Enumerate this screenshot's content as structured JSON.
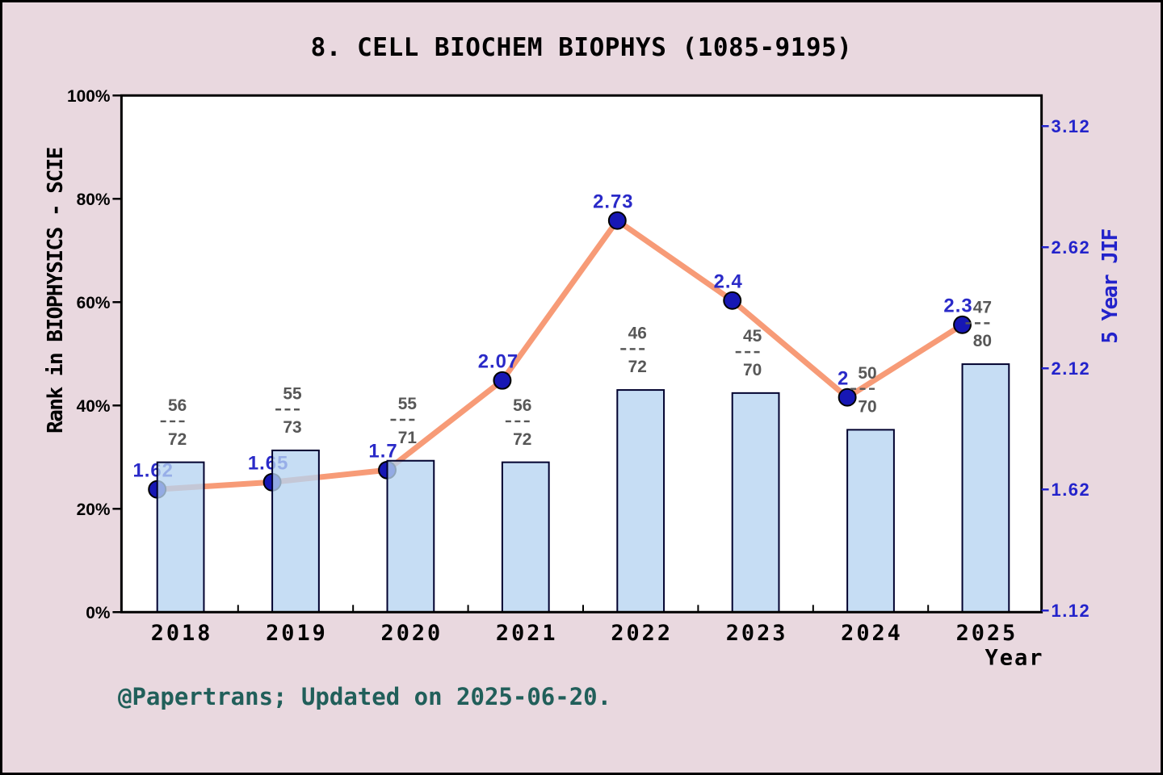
{
  "title": "8. CELL BIOCHEM BIOPHYS (1085-9195)",
  "attribution": "@Papertrans; Updated on 2025-06-20.",
  "colors": {
    "background": "#e9d8df",
    "plot_background": "#ffffff",
    "frame": "#000000",
    "bar_fill": "#b6d3f1",
    "bar_edge": "#00002e",
    "line": "#f79b77",
    "marker_fill": "#1717b4",
    "marker_edge": "#000000",
    "jif_label": "#2a2ac8",
    "right_axis": "#2323cb",
    "fraction_label": "#575757",
    "axis_text": "#000000",
    "attribution_text": "#215f5a"
  },
  "chart_data": {
    "type": "combo-bar-line",
    "categories": [
      "2018",
      "2019",
      "2020",
      "2021",
      "2022",
      "2023",
      "2024",
      "2025"
    ],
    "series": [
      {
        "name": "Rank in BIOPHYSICS - SCIE",
        "type": "bar",
        "axis": "left",
        "bar_heights_pct": [
          29,
          31.3,
          29.3,
          29,
          43,
          42.4,
          35.3,
          48
        ],
        "rank_labels": [
          {
            "num": "56",
            "den": "72"
          },
          {
            "num": "55",
            "den": "73"
          },
          {
            "num": "55",
            "den": "71"
          },
          {
            "num": "56",
            "den": "72"
          },
          {
            "num": "46",
            "den": "72"
          },
          {
            "num": "45",
            "den": "70"
          },
          {
            "num": "50",
            "den": "70"
          },
          {
            "num": "47",
            "den": "80"
          }
        ]
      },
      {
        "name": "5 Year JIF",
        "type": "line",
        "axis": "right",
        "values": [
          1.62,
          1.65,
          1.7,
          2.07,
          2.73,
          2.4,
          2.0,
          2.3
        ],
        "point_labels": [
          "1.62",
          "1.65",
          "1.7",
          "2.07",
          "2.73",
          "2.4",
          "2",
          "2.3"
        ]
      }
    ],
    "left_axis": {
      "title": "Rank in BIOPHYSICS - SCIE",
      "ticks": [
        "0%",
        "20%",
        "40%",
        "60%",
        "80%",
        "100%"
      ],
      "range": [
        0,
        100
      ]
    },
    "right_axis": {
      "title": "5 Year JIF",
      "ticks": [
        "1.12",
        "1.62",
        "2.12",
        "2.62",
        "3.12"
      ],
      "range": [
        1.12,
        3.25
      ]
    },
    "x_axis": {
      "title": "Year"
    },
    "grid": "off",
    "legend": "none"
  }
}
